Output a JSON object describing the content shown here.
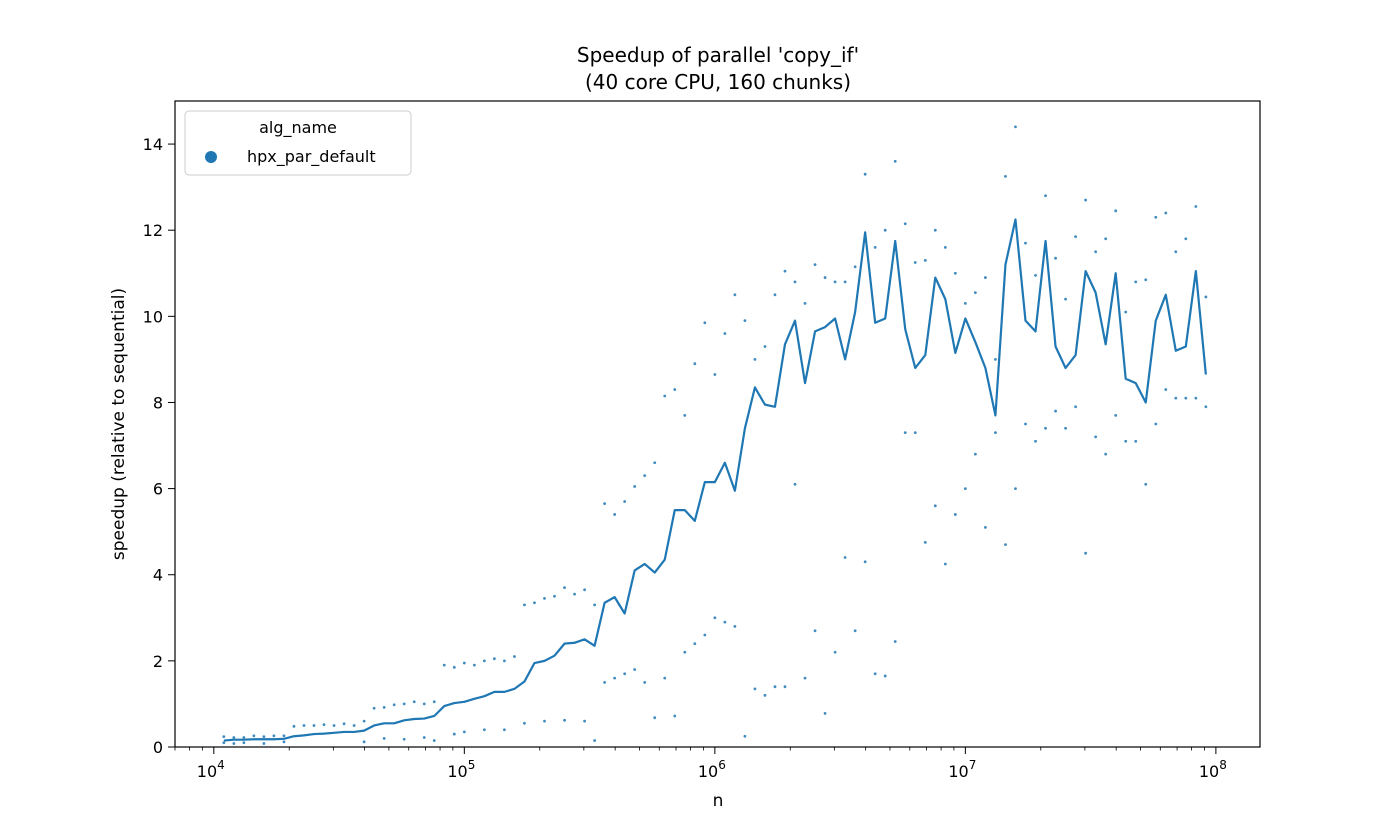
{
  "chart_data": {
    "type": "scatter",
    "title": "Speedup of parallel 'copy_if'",
    "subtitle": "(40 core CPU, 160 chunks)",
    "xlabel": "n",
    "ylabel": "speedup (relative to sequential)",
    "xscale": "log",
    "xlim": [
      7000,
      150000000
    ],
    "ylim": [
      0,
      15
    ],
    "xticks": [
      {
        "value": 10000,
        "base": "10",
        "exp": "4"
      },
      {
        "value": 100000,
        "base": "10",
        "exp": "5"
      },
      {
        "value": 1000000,
        "base": "10",
        "exp": "6"
      },
      {
        "value": 10000000,
        "base": "10",
        "exp": "7"
      },
      {
        "value": 100000000,
        "base": "10",
        "exp": "8"
      }
    ],
    "yticks": [
      0,
      2,
      4,
      6,
      8,
      10,
      12,
      14
    ],
    "grid": false,
    "legend": {
      "title": "alg_name",
      "position": "top-left",
      "entries": [
        "hpx_par_default"
      ]
    },
    "colors": {
      "series": "#1f77b4"
    },
    "series": [
      {
        "name": "hpx_par_default",
        "mean_line": {
          "x": [
            10965,
            12023,
            13183,
            14454,
            15849,
            17378,
            19055,
            20893,
            22909,
            25119,
            27542,
            30200,
            33113,
            36308,
            39811,
            43652,
            47863,
            52481,
            57544,
            63096,
            69183,
            75858,
            83176,
            91201,
            100000,
            109648,
            120226,
            131826,
            144544,
            158489,
            173780,
            190546,
            208930,
            229087,
            251189,
            275423,
            301995,
            331131,
            363078,
            398107,
            436516,
            478630,
            524807,
            575440,
            630957,
            691831,
            758578,
            831764,
            912011,
            1000000,
            1096478,
            1202264,
            1318257,
            1445440,
            1584893,
            1737801,
            1905461,
            2089296,
            2290868,
            2511886,
            2754229,
            3019952,
            3311311,
            3630781,
            3981072,
            4365158,
            4786301,
            5248075,
            5754399,
            6309573,
            6918310,
            7585776,
            8317638,
            9120108,
            10000000,
            10964782,
            12022644,
            13182567,
            14454398,
            15848932,
            17378008,
            19054607,
            20892961,
            22908677,
            25118864,
            27542287,
            30199517,
            33113112,
            36307805,
            39810717,
            43651583,
            47863009,
            52480746,
            57543994,
            63095734,
            69183097,
            75857758,
            83176377,
            91201084
          ],
          "y": [
            0.15,
            0.17,
            0.17,
            0.18,
            0.18,
            0.18,
            0.19,
            0.25,
            0.27,
            0.3,
            0.31,
            0.33,
            0.35,
            0.35,
            0.38,
            0.5,
            0.55,
            0.55,
            0.62,
            0.65,
            0.66,
            0.72,
            0.95,
            1.02,
            1.05,
            1.12,
            1.18,
            1.28,
            1.28,
            1.35,
            1.52,
            1.95,
            2.0,
            2.12,
            2.4,
            2.42,
            2.5,
            2.35,
            3.35,
            3.48,
            3.1,
            4.1,
            4.25,
            4.05,
            4.35,
            5.5,
            5.5,
            5.25,
            6.15,
            6.15,
            6.6,
            5.95,
            7.4,
            8.35,
            7.95,
            7.9,
            9.35,
            9.9,
            8.45,
            9.65,
            9.75,
            9.95,
            9.0,
            10.1,
            11.95,
            9.85,
            9.95,
            11.75,
            9.7,
            8.8,
            9.1,
            10.9,
            10.4,
            9.15,
            9.95,
            9.4,
            8.8,
            7.7,
            11.2,
            12.25,
            9.9,
            9.65,
            11.75,
            9.3,
            8.8,
            9.1,
            11.05,
            10.55,
            9.35,
            11.0,
            8.55,
            8.45,
            8.0,
            9.9,
            10.5,
            9.2,
            9.3,
            11.05,
            8.65
          ]
        },
        "scatter_points": [
          [
            10965,
            0.24
          ],
          [
            10965,
            0.1
          ],
          [
            12023,
            0.22
          ],
          [
            12023,
            0.08
          ],
          [
            13183,
            0.22
          ],
          [
            13183,
            0.1
          ],
          [
            14454,
            0.26
          ],
          [
            15849,
            0.24
          ],
          [
            15849,
            0.08
          ],
          [
            17378,
            0.26
          ],
          [
            19055,
            0.26
          ],
          [
            19055,
            0.12
          ],
          [
            20893,
            0.48
          ],
          [
            22909,
            0.5
          ],
          [
            25119,
            0.5
          ],
          [
            27542,
            0.52
          ],
          [
            30200,
            0.5
          ],
          [
            33113,
            0.54
          ],
          [
            36308,
            0.5
          ],
          [
            39811,
            0.6
          ],
          [
            39811,
            0.12
          ],
          [
            43652,
            0.9
          ],
          [
            47863,
            0.92
          ],
          [
            47863,
            0.2
          ],
          [
            52481,
            0.98
          ],
          [
            57544,
            1.0
          ],
          [
            57544,
            0.18
          ],
          [
            63096,
            1.05
          ],
          [
            69183,
            1.0
          ],
          [
            69183,
            0.22
          ],
          [
            75858,
            1.05
          ],
          [
            75858,
            0.15
          ],
          [
            83176,
            1.9
          ],
          [
            91201,
            1.85
          ],
          [
            91201,
            0.3
          ],
          [
            100000,
            1.95
          ],
          [
            100000,
            0.35
          ],
          [
            109648,
            1.9
          ],
          [
            120226,
            2.0
          ],
          [
            120226,
            0.4
          ],
          [
            131826,
            2.05
          ],
          [
            144544,
            2.0
          ],
          [
            144544,
            0.4
          ],
          [
            158489,
            2.1
          ],
          [
            173780,
            3.3
          ],
          [
            173780,
            0.55
          ],
          [
            190546,
            3.35
          ],
          [
            208930,
            3.45
          ],
          [
            208930,
            0.6
          ],
          [
            229087,
            3.5
          ],
          [
            251189,
            3.7
          ],
          [
            251189,
            0.62
          ],
          [
            275423,
            3.55
          ],
          [
            301995,
            3.65
          ],
          [
            301995,
            0.6
          ],
          [
            331131,
            3.3
          ],
          [
            331131,
            0.15
          ],
          [
            363078,
            5.65
          ],
          [
            363078,
            1.5
          ],
          [
            398107,
            5.4
          ],
          [
            398107,
            1.6
          ],
          [
            436516,
            5.7
          ],
          [
            436516,
            1.7
          ],
          [
            478630,
            6.05
          ],
          [
            478630,
            1.8
          ],
          [
            524807,
            6.3
          ],
          [
            524807,
            1.5
          ],
          [
            575440,
            6.6
          ],
          [
            575440,
            0.68
          ],
          [
            630957,
            8.15
          ],
          [
            630957,
            1.6
          ],
          [
            691831,
            8.3
          ],
          [
            691831,
            0.72
          ],
          [
            758578,
            7.7
          ],
          [
            758578,
            2.2
          ],
          [
            831764,
            8.9
          ],
          [
            831764,
            2.4
          ],
          [
            912011,
            9.85
          ],
          [
            912011,
            2.6
          ],
          [
            1000000,
            8.65
          ],
          [
            1000000,
            3.0
          ],
          [
            1096478,
            9.6
          ],
          [
            1096478,
            2.9
          ],
          [
            1202264,
            10.5
          ],
          [
            1202264,
            2.8
          ],
          [
            1318257,
            9.9
          ],
          [
            1318257,
            0.25
          ],
          [
            1445440,
            9.0
          ],
          [
            1445440,
            1.35
          ],
          [
            1584893,
            9.3
          ],
          [
            1584893,
            1.2
          ],
          [
            1737801,
            10.5
          ],
          [
            1737801,
            1.4
          ],
          [
            1905461,
            11.05
          ],
          [
            1905461,
            1.4
          ],
          [
            2089296,
            10.8
          ],
          [
            2089296,
            6.1
          ],
          [
            2290868,
            10.3
          ],
          [
            2290868,
            1.6
          ],
          [
            2511886,
            11.2
          ],
          [
            2511886,
            2.7
          ],
          [
            2754229,
            10.9
          ],
          [
            2754229,
            0.78
          ],
          [
            3019952,
            10.8
          ],
          [
            3019952,
            2.2
          ],
          [
            3311311,
            10.8
          ],
          [
            3311311,
            4.4
          ],
          [
            3630781,
            11.15
          ],
          [
            3630781,
            2.7
          ],
          [
            3981072,
            13.3
          ],
          [
            3981072,
            4.3
          ],
          [
            4365158,
            11.6
          ],
          [
            4365158,
            1.7
          ],
          [
            4786301,
            12.0
          ],
          [
            4786301,
            1.65
          ],
          [
            5248075,
            13.6
          ],
          [
            5248075,
            2.45
          ],
          [
            5754399,
            12.15
          ],
          [
            5754399,
            7.3
          ],
          [
            6309573,
            11.25
          ],
          [
            6309573,
            7.3
          ],
          [
            6918310,
            11.3
          ],
          [
            6918310,
            4.75
          ],
          [
            7585776,
            12.0
          ],
          [
            7585776,
            5.6
          ],
          [
            8317638,
            11.6
          ],
          [
            8317638,
            4.25
          ],
          [
            9120108,
            11.0
          ],
          [
            9120108,
            5.4
          ],
          [
            10000000,
            10.3
          ],
          [
            10000000,
            6.0
          ],
          [
            10964782,
            10.55
          ],
          [
            10964782,
            6.8
          ],
          [
            12022644,
            10.9
          ],
          [
            12022644,
            5.1
          ],
          [
            13182567,
            9.0
          ],
          [
            13182567,
            7.3
          ],
          [
            14454398,
            13.25
          ],
          [
            14454398,
            4.7
          ],
          [
            15848932,
            14.4
          ],
          [
            15848932,
            6.0
          ],
          [
            17378008,
            11.7
          ],
          [
            17378008,
            7.5
          ],
          [
            19054607,
            10.95
          ],
          [
            19054607,
            7.1
          ],
          [
            20892961,
            12.8
          ],
          [
            20892961,
            7.4
          ],
          [
            22908677,
            11.35
          ],
          [
            22908677,
            7.8
          ],
          [
            25118864,
            10.4
          ],
          [
            25118864,
            7.4
          ],
          [
            27542287,
            11.85
          ],
          [
            27542287,
            7.9
          ],
          [
            30199517,
            12.7
          ],
          [
            30199517,
            4.5
          ],
          [
            33113112,
            11.5
          ],
          [
            33113112,
            7.2
          ],
          [
            36307805,
            11.8
          ],
          [
            36307805,
            6.8
          ],
          [
            39810717,
            12.45
          ],
          [
            39810717,
            7.7
          ],
          [
            43651583,
            10.1
          ],
          [
            43651583,
            7.1
          ],
          [
            47863009,
            10.8
          ],
          [
            47863009,
            7.1
          ],
          [
            52480746,
            10.85
          ],
          [
            52480746,
            6.1
          ],
          [
            57543994,
            12.3
          ],
          [
            57543994,
            7.5
          ],
          [
            63095734,
            12.4
          ],
          [
            63095734,
            8.3
          ],
          [
            69183097,
            11.5
          ],
          [
            69183097,
            8.1
          ],
          [
            75857758,
            11.8
          ],
          [
            75857758,
            8.1
          ],
          [
            83176377,
            12.55
          ],
          [
            83176377,
            8.1
          ],
          [
            91201084,
            10.45
          ],
          [
            91201084,
            7.9
          ]
        ]
      }
    ]
  }
}
